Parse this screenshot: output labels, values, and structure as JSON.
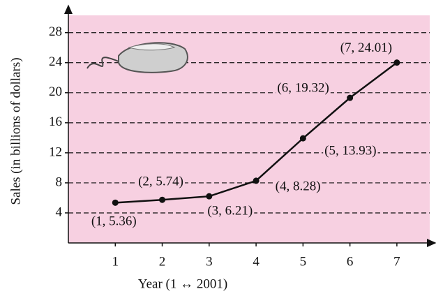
{
  "chart_data": {
    "type": "line",
    "x_label": "Year (1 ↔ 2001)",
    "y_label": "Sales (in billions of dollars)",
    "x": [
      1,
      2,
      3,
      4,
      5,
      6,
      7
    ],
    "series": [
      {
        "color": "#111111",
        "values": [
          5.36,
          5.74,
          6.21,
          8.28,
          13.93,
          19.32,
          24.01
        ],
        "value_labels": [
          "(1, 5.36)",
          "(2, 5.74)",
          "(3, 6.21)",
          "(4, 8.28)",
          "(5, 13.93)",
          "(6, 19.32)",
          "(7, 24.01)"
        ]
      }
    ],
    "xlim": [
      0,
      7.7
    ],
    "ylim": [
      0,
      30.3
    ],
    "xticks": [
      1,
      2,
      3,
      4,
      5,
      6,
      7
    ],
    "yticks": [
      4,
      8,
      12,
      16,
      20,
      24,
      28
    ],
    "grid": true,
    "background": "#f7d0e1"
  }
}
